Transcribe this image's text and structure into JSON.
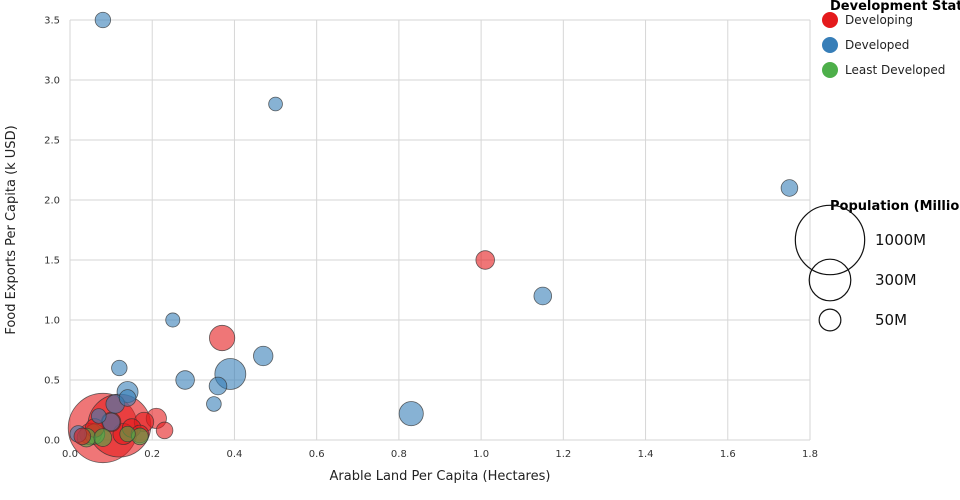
{
  "chart_data": {
    "type": "scatter",
    "title": "",
    "xlabel": "Arable Land Per Capita (Hectares)",
    "ylabel": "Food Exports Per Capita (k USD)",
    "xlim": [
      0,
      1.8
    ],
    "ylim": [
      0,
      3.5
    ],
    "x_ticks": [
      "0.0",
      "0.2",
      "0.4",
      "0.6",
      "0.8",
      "1.0",
      "1.2",
      "1.4",
      "1.6",
      "1.8"
    ],
    "y_ticks": [
      "0.0",
      "0.5",
      "1.0",
      "1.5",
      "2.0",
      "2.5",
      "3.0",
      "3.5"
    ],
    "grid": true,
    "size_legend": {
      "title": "Population (Millions)",
      "items": [
        {
          "label": "1000M",
          "population": 1000
        },
        {
          "label": "300M",
          "population": 300
        },
        {
          "label": "50M",
          "population": 50
        }
      ]
    },
    "color_legend": {
      "title": "Development Status",
      "items": [
        {
          "label": "Developing",
          "color": "#e41a1c"
        },
        {
          "label": "Developed",
          "color": "#377eb8"
        },
        {
          "label": "Least Developed",
          "color": "#4daf4a"
        }
      ]
    },
    "series": [
      {
        "name": "Developed",
        "color": "#377eb8",
        "points": [
          {
            "x": 0.08,
            "y": 3.5,
            "population": 15
          },
          {
            "x": 0.5,
            "y": 2.8,
            "population": 9
          },
          {
            "x": 1.75,
            "y": 2.1,
            "population": 20
          },
          {
            "x": 1.15,
            "y": 1.2,
            "population": 25
          },
          {
            "x": 0.25,
            "y": 1.0,
            "population": 10
          },
          {
            "x": 0.47,
            "y": 0.7,
            "population": 35
          },
          {
            "x": 0.39,
            "y": 0.55,
            "population": 140
          },
          {
            "x": 0.28,
            "y": 0.5,
            "population": 30
          },
          {
            "x": 0.36,
            "y": 0.45,
            "population": 25
          },
          {
            "x": 0.12,
            "y": 0.6,
            "population": 15
          },
          {
            "x": 0.14,
            "y": 0.4,
            "population": 45
          },
          {
            "x": 0.35,
            "y": 0.3,
            "population": 12
          },
          {
            "x": 0.83,
            "y": 0.22,
            "population": 70
          },
          {
            "x": 0.11,
            "y": 0.3,
            "population": 30
          },
          {
            "x": 0.14,
            "y": 0.35,
            "population": 20
          },
          {
            "x": 0.07,
            "y": 0.2,
            "population": 12
          },
          {
            "x": 0.1,
            "y": 0.15,
            "population": 25
          },
          {
            "x": 0.02,
            "y": 0.05,
            "population": 20
          }
        ]
      },
      {
        "name": "Developing",
        "color": "#e41a1c",
        "points": [
          {
            "x": 1.01,
            "y": 1.5,
            "population": 30
          },
          {
            "x": 0.37,
            "y": 0.85,
            "population": 80
          },
          {
            "x": 0.08,
            "y": 0.1,
            "population": 1000
          },
          {
            "x": 0.12,
            "y": 0.12,
            "population": 800
          },
          {
            "x": 0.21,
            "y": 0.18,
            "population": 40
          },
          {
            "x": 0.23,
            "y": 0.08,
            "population": 20
          },
          {
            "x": 0.18,
            "y": 0.15,
            "population": 35
          },
          {
            "x": 0.15,
            "y": 0.1,
            "population": 30
          },
          {
            "x": 0.05,
            "y": 0.05,
            "population": 50
          },
          {
            "x": 0.13,
            "y": 0.05,
            "population": 45
          },
          {
            "x": 0.1,
            "y": 0.15,
            "population": 35
          },
          {
            "x": 0.06,
            "y": 0.1,
            "population": 30
          },
          {
            "x": 0.17,
            "y": 0.05,
            "population": 25
          },
          {
            "x": 0.03,
            "y": 0.03,
            "population": 20
          }
        ]
      },
      {
        "name": "Least Developed",
        "color": "#4daf4a",
        "points": [
          {
            "x": 0.04,
            "y": 0.02,
            "population": 30
          },
          {
            "x": 0.08,
            "y": 0.02,
            "population": 25
          },
          {
            "x": 0.06,
            "y": 0.05,
            "population": 40
          },
          {
            "x": 0.17,
            "y": 0.03,
            "population": 20
          },
          {
            "x": 0.14,
            "y": 0.05,
            "population": 15
          }
        ]
      }
    ]
  }
}
